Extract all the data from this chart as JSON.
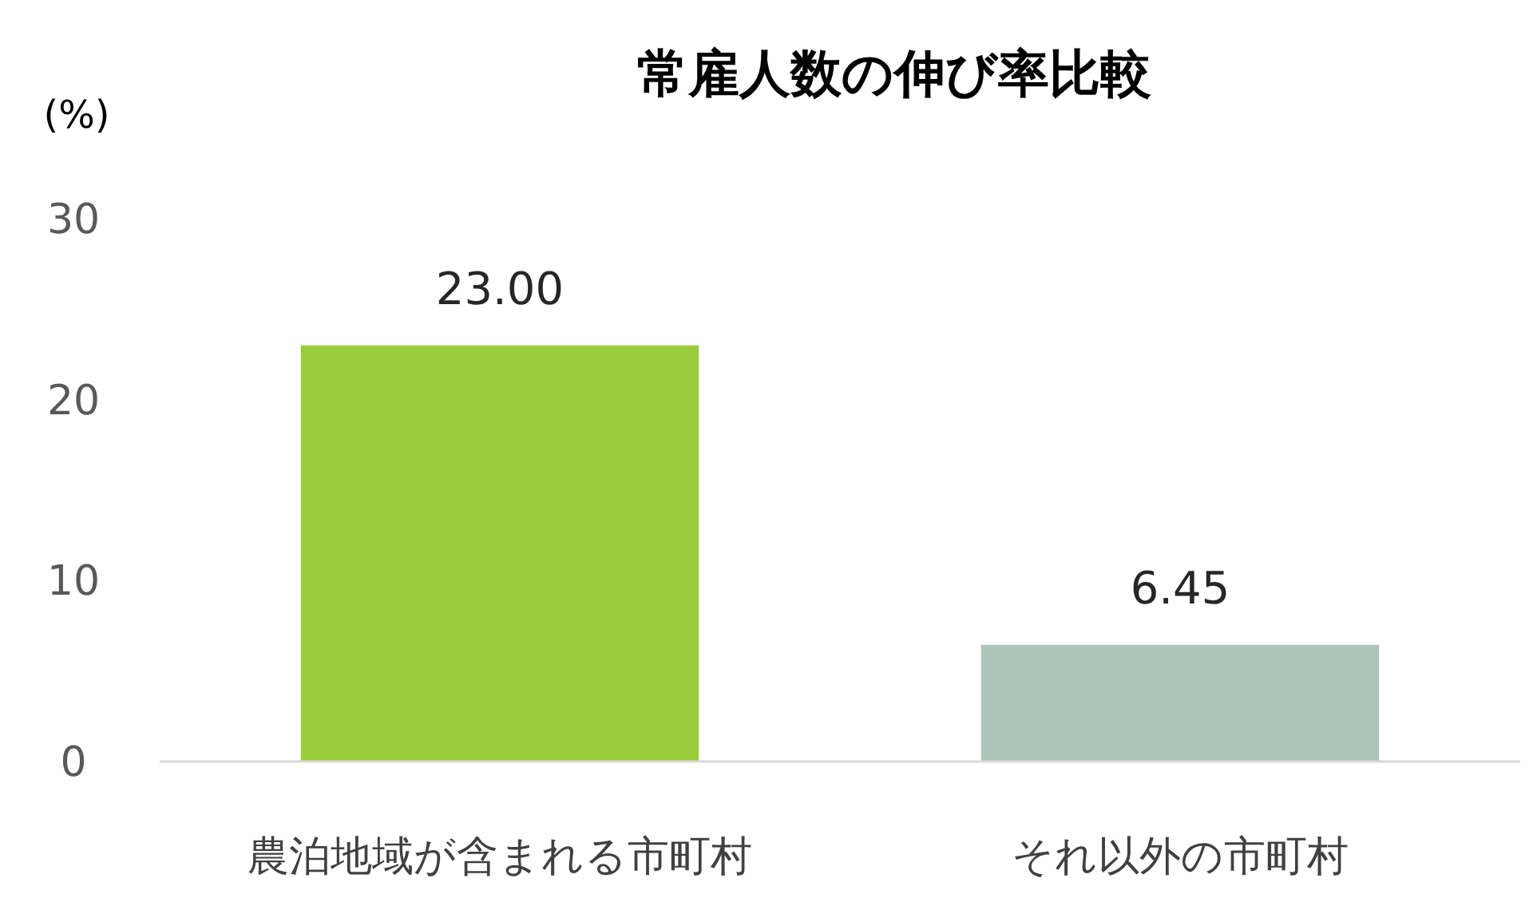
{
  "chart_data": {
    "type": "bar",
    "title": "常雇人数の伸び率比較",
    "ylabel": "(%)",
    "categories": [
      "農泊地域が含まれる市町村",
      "それ以外の市町村"
    ],
    "values": [
      23.0,
      6.45
    ],
    "colors": [
      "#9acb3a",
      "#adc4b8"
    ],
    "value_labels": [
      "23.00",
      "6.45"
    ],
    "ylim": [
      0,
      30
    ],
    "yticks": [
      0,
      10,
      20,
      30
    ]
  }
}
